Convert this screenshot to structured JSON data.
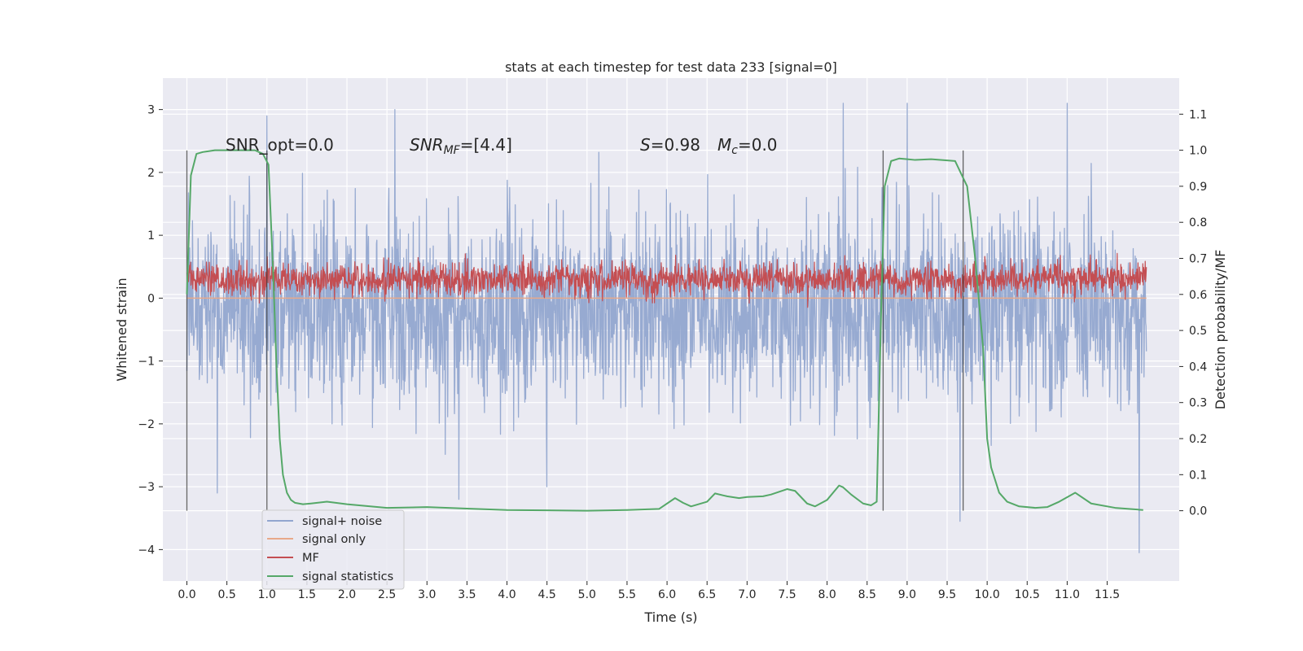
{
  "chart_data": {
    "type": "line",
    "title": "stats at each timestep for test data 233 [signal=0]",
    "xlabel": "Time (s)",
    "ylabel": "Whitened strain",
    "y2label": "Detection probability/MF",
    "xlim": [
      -0.3,
      12.4
    ],
    "ylim": [
      -4.5,
      3.5
    ],
    "y2lim": [
      -0.195,
      1.2
    ],
    "x_ticks": [
      0.0,
      0.5,
      1.0,
      1.5,
      2.0,
      2.5,
      3.0,
      3.5,
      4.0,
      4.5,
      5.0,
      5.5,
      6.0,
      6.5,
      7.0,
      7.5,
      8.0,
      8.5,
      9.0,
      9.5,
      10.0,
      10.5,
      11.0,
      11.5
    ],
    "x_tick_labels": [
      "0.0",
      "0.5",
      "1.0",
      "1.5",
      "2.0",
      "2.5",
      "3.0",
      "3.5",
      "4.0",
      "4.5",
      "5.0",
      "5.5",
      "6.0",
      "6.5",
      "7.0",
      "7.5",
      "8.0",
      "8.5",
      "9.0",
      "9.5",
      "10.0",
      "10.5",
      "11.0",
      "11.5"
    ],
    "y_ticks": [
      -4,
      -3,
      -2,
      -1,
      0,
      1,
      2,
      3
    ],
    "y_tick_labels": [
      "−4",
      "−3",
      "−2",
      "−1",
      "0",
      "1",
      "2",
      "3"
    ],
    "y2_ticks": [
      0.0,
      0.1,
      0.2,
      0.3,
      0.4,
      0.5,
      0.6,
      0.7,
      0.8,
      0.9,
      1.0,
      1.1
    ],
    "y2_tick_labels": [
      "0.0",
      "0.1",
      "0.2",
      "0.3",
      "0.4",
      "0.5",
      "0.6",
      "0.7",
      "0.8",
      "0.9",
      "1.0",
      "1.1"
    ],
    "grid": true,
    "legend_position": "lower-left",
    "annotations": {
      "snr_opt": "SNR_opt=0.0",
      "snr_mf_name": "SNR",
      "snr_mf_sub": "MF",
      "snr_mf_value": "=[4.4]",
      "s_name": "S",
      "s_value": "=0.98",
      "mc_name": "M",
      "mc_sub": "c",
      "mc_value": "=0.0"
    },
    "vertical_markers": [
      0.0,
      1.0,
      8.7,
      9.7
    ],
    "series": [
      {
        "name": "signal+ noise",
        "axis": "left",
        "color": "#92a6cf",
        "kind": "noise",
        "t_range": [
          0.0,
          11.99
        ],
        "mean": -0.2,
        "spread": 0.75,
        "extremes": [
          [
            0.38,
            -3.1
          ],
          [
            1.0,
            2.9
          ],
          [
            2.6,
            3.0
          ],
          [
            3.4,
            -3.2
          ],
          [
            4.5,
            -3.0
          ],
          [
            8.2,
            3.1
          ],
          [
            9.0,
            3.1
          ],
          [
            9.66,
            -3.55
          ],
          [
            11.0,
            3.1
          ],
          [
            11.9,
            -4.05
          ]
        ]
      },
      {
        "name": "signal only",
        "axis": "left",
        "color": "#e8a98a",
        "kind": "flat",
        "t_range": [
          0.0,
          11.99
        ],
        "value": 0.0
      },
      {
        "name": "MF",
        "axis": "left",
        "color": "#c44e52",
        "kind": "noise",
        "t_range": [
          0.0,
          11.99
        ],
        "mean": 0.3,
        "spread": 0.13,
        "extremes": []
      },
      {
        "name": "signal statistics",
        "axis": "right",
        "color": "#55a868",
        "kind": "line",
        "x": [
          0.0,
          0.05,
          0.12,
          0.2,
          0.35,
          0.5,
          0.7,
          0.85,
          0.95,
          1.02,
          1.08,
          1.12,
          1.16,
          1.2,
          1.25,
          1.3,
          1.35,
          1.45,
          1.55,
          1.75,
          2.0,
          2.5,
          3.0,
          3.5,
          4.0,
          4.5,
          5.0,
          5.5,
          5.9,
          6.1,
          6.2,
          6.3,
          6.5,
          6.6,
          6.75,
          6.9,
          7.0,
          7.2,
          7.3,
          7.5,
          7.6,
          7.75,
          7.85,
          8.0,
          8.15,
          8.2,
          8.3,
          8.45,
          8.55,
          8.62,
          8.68,
          8.72,
          8.8,
          8.9,
          9.0,
          9.1,
          9.3,
          9.6,
          9.75,
          9.85,
          9.95,
          10.0,
          10.05,
          10.15,
          10.25,
          10.4,
          10.6,
          10.75,
          10.9,
          11.1,
          11.3,
          11.6,
          11.95
        ],
        "values": [
          0.6,
          0.93,
          0.99,
          0.995,
          1.0,
          1.0,
          1.0,
          1.0,
          0.99,
          0.96,
          0.65,
          0.4,
          0.2,
          0.1,
          0.05,
          0.03,
          0.022,
          0.018,
          0.02,
          0.025,
          0.018,
          0.008,
          0.01,
          0.006,
          0.002,
          0.001,
          0.0,
          0.002,
          0.005,
          0.035,
          0.022,
          0.012,
          0.025,
          0.048,
          0.04,
          0.035,
          0.038,
          0.04,
          0.045,
          0.06,
          0.055,
          0.02,
          0.012,
          0.03,
          0.07,
          0.065,
          0.045,
          0.02,
          0.015,
          0.025,
          0.6,
          0.9,
          0.97,
          0.977,
          0.975,
          0.973,
          0.975,
          0.97,
          0.9,
          0.7,
          0.45,
          0.2,
          0.12,
          0.05,
          0.025,
          0.012,
          0.008,
          0.01,
          0.025,
          0.05,
          0.02,
          0.008,
          0.002
        ]
      }
    ]
  }
}
